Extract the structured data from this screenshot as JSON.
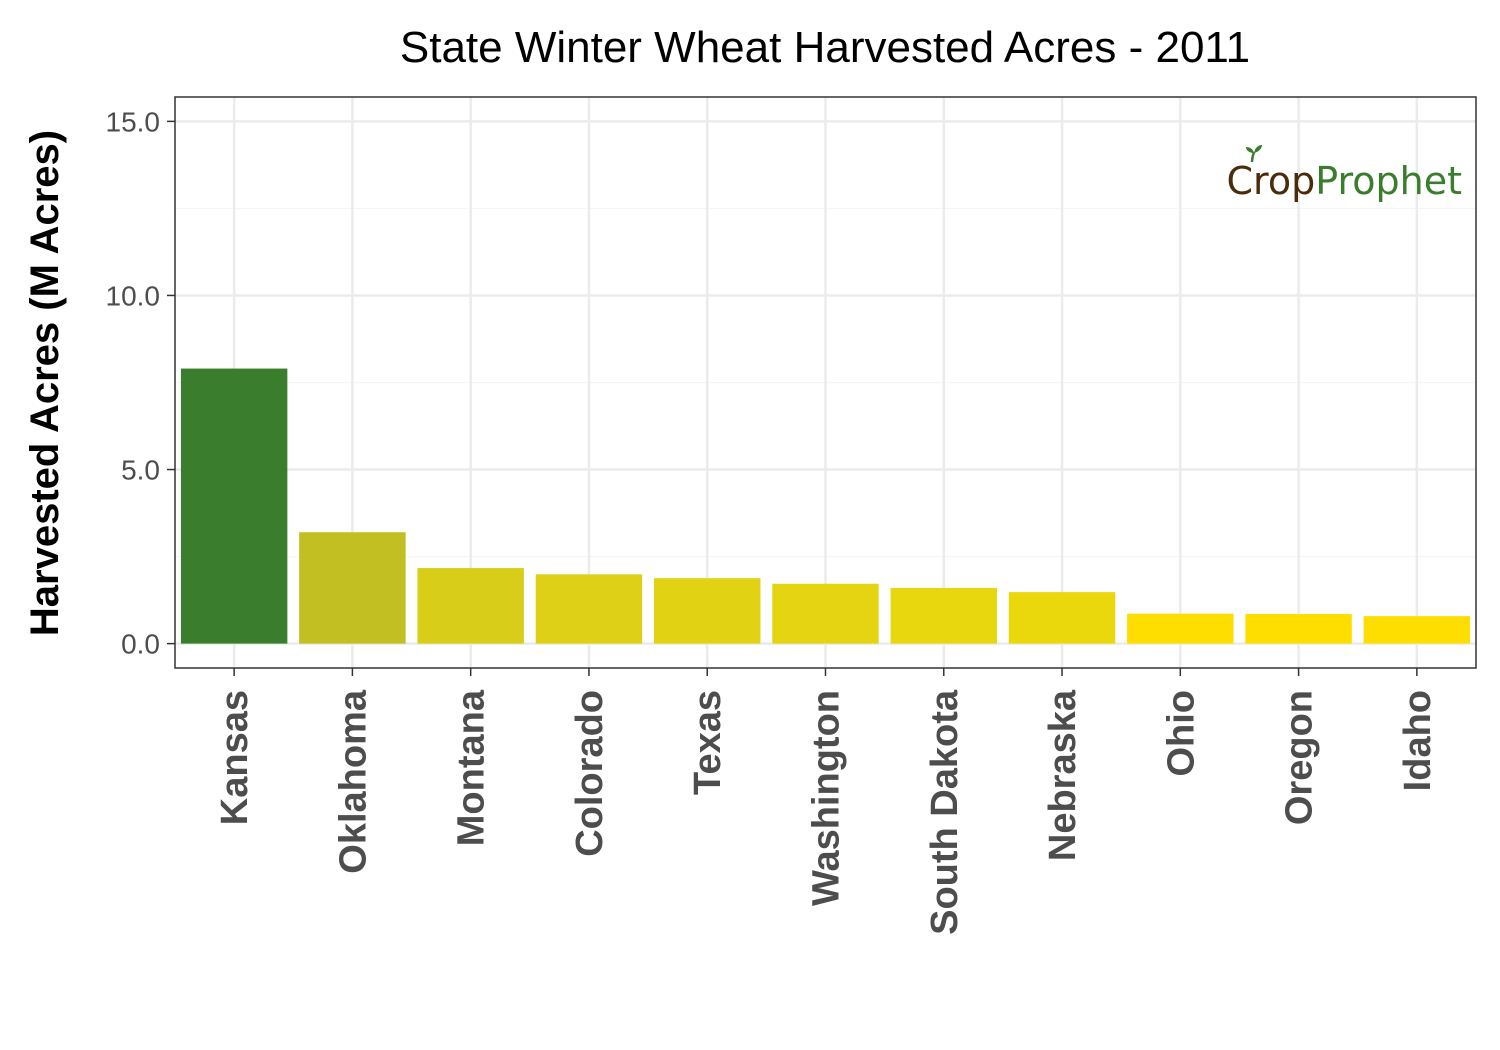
{
  "chart_data": {
    "type": "bar",
    "title": "State Winter Wheat Harvested Acres - 2011",
    "xlabel": "",
    "ylabel": "Harvested Acres (M Acres)",
    "ylim": [
      -0.7,
      15.7
    ],
    "yticks": [
      0,
      5,
      10,
      15
    ],
    "ytick_labels": [
      "0.0",
      "5.0",
      "10.0",
      "15.0"
    ],
    "grid": true,
    "legend": "none",
    "categories": [
      "Kansas",
      "Oklahoma",
      "Montana",
      "Colorado",
      "Texas",
      "Washington",
      "South Dakota",
      "Nebraska",
      "Ohio",
      "Oregon",
      "Idaho"
    ],
    "values": [
      7.9,
      3.2,
      2.17,
      1.99,
      1.88,
      1.72,
      1.6,
      1.48,
      0.86,
      0.85,
      0.79
    ],
    "colors": [
      "#3a7d2c",
      "#c2bf22",
      "#d8cd19",
      "#ddd016",
      "#e1d214",
      "#e4d412",
      "#e8d60f",
      "#ebd80c",
      "#fdde00",
      "#fdde00",
      "#fede00"
    ]
  },
  "logo": {
    "part1": "Cr",
    "part2": "o",
    "part3": "p",
    "part4": "Prophet",
    "color_dark": "#4a2c0a",
    "color_green": "#3a7d2c",
    "icon": "sprout-icon"
  },
  "colors": {
    "panel_border": "#333333",
    "grid_major": "#ebebeb",
    "grid_minor": "#f5f5f5",
    "tick_text": "#4d4d4d"
  }
}
